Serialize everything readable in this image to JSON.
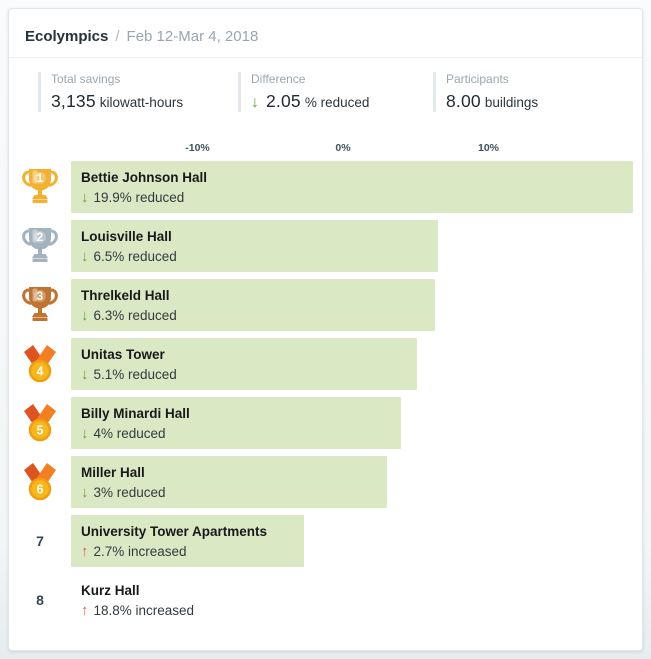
{
  "header": {
    "title": "Ecolympics",
    "separator": "/",
    "date_range": "Feb 12-Mar 4, 2018"
  },
  "stats": [
    {
      "label": "Total savings",
      "value": "3,135",
      "unit": "kilowatt-hours",
      "arrow": null
    },
    {
      "label": "Difference",
      "value": "2.05",
      "unit": "% reduced",
      "arrow": "down"
    },
    {
      "label": "Participants",
      "value": "8.00",
      "unit": "buildings",
      "arrow": null
    }
  ],
  "chart_data": {
    "type": "bar",
    "orientation": "horizontal",
    "axis_ticks": [
      "-10%",
      "0%",
      "10%"
    ],
    "axis_tick_values": [
      -10,
      0,
      10
    ],
    "legend": "bars extend right for % reduced energy use; increases shorten the bar past 0%",
    "rows": [
      {
        "rank": 1,
        "award": "gold-trophy",
        "name": "Bettie Johnson Hall",
        "change_pct": 19.9,
        "direction": "reduced",
        "label": "19.9% reduced"
      },
      {
        "rank": 2,
        "award": "silver-trophy",
        "name": "Louisville Hall",
        "change_pct": 6.5,
        "direction": "reduced",
        "label": "6.5% reduced"
      },
      {
        "rank": 3,
        "award": "bronze-trophy",
        "name": "Threlkeld Hall",
        "change_pct": 6.3,
        "direction": "reduced",
        "label": "6.3% reduced"
      },
      {
        "rank": 4,
        "award": "medal",
        "name": "Unitas Tower",
        "change_pct": 5.1,
        "direction": "reduced",
        "label": "5.1% reduced"
      },
      {
        "rank": 5,
        "award": "medal",
        "name": "Billy Minardi Hall",
        "change_pct": 4,
        "direction": "reduced",
        "label": "4% reduced"
      },
      {
        "rank": 6,
        "award": "medal",
        "name": "Miller Hall",
        "change_pct": 3,
        "direction": "reduced",
        "label": "3% reduced"
      },
      {
        "rank": 7,
        "award": "none",
        "name": "University Tower Apartments",
        "change_pct": 2.7,
        "direction": "increased",
        "label": "2.7% increased"
      },
      {
        "rank": 8,
        "award": "none",
        "name": "Kurz Hall",
        "change_pct": 18.8,
        "direction": "increased",
        "label": "18.8% increased"
      }
    ]
  },
  "colors": {
    "bar": "#dbe8c4",
    "green": "#6aa339",
    "red": "#e05d52",
    "gold": "#f2b230",
    "silver": "#a3b2bd",
    "bronze": "#c0742f",
    "ribbon-left": "#df5321",
    "ribbon-right": "#f28021",
    "medal-circle": "#f8b81c",
    "medal-ring": "#ef9e11"
  }
}
